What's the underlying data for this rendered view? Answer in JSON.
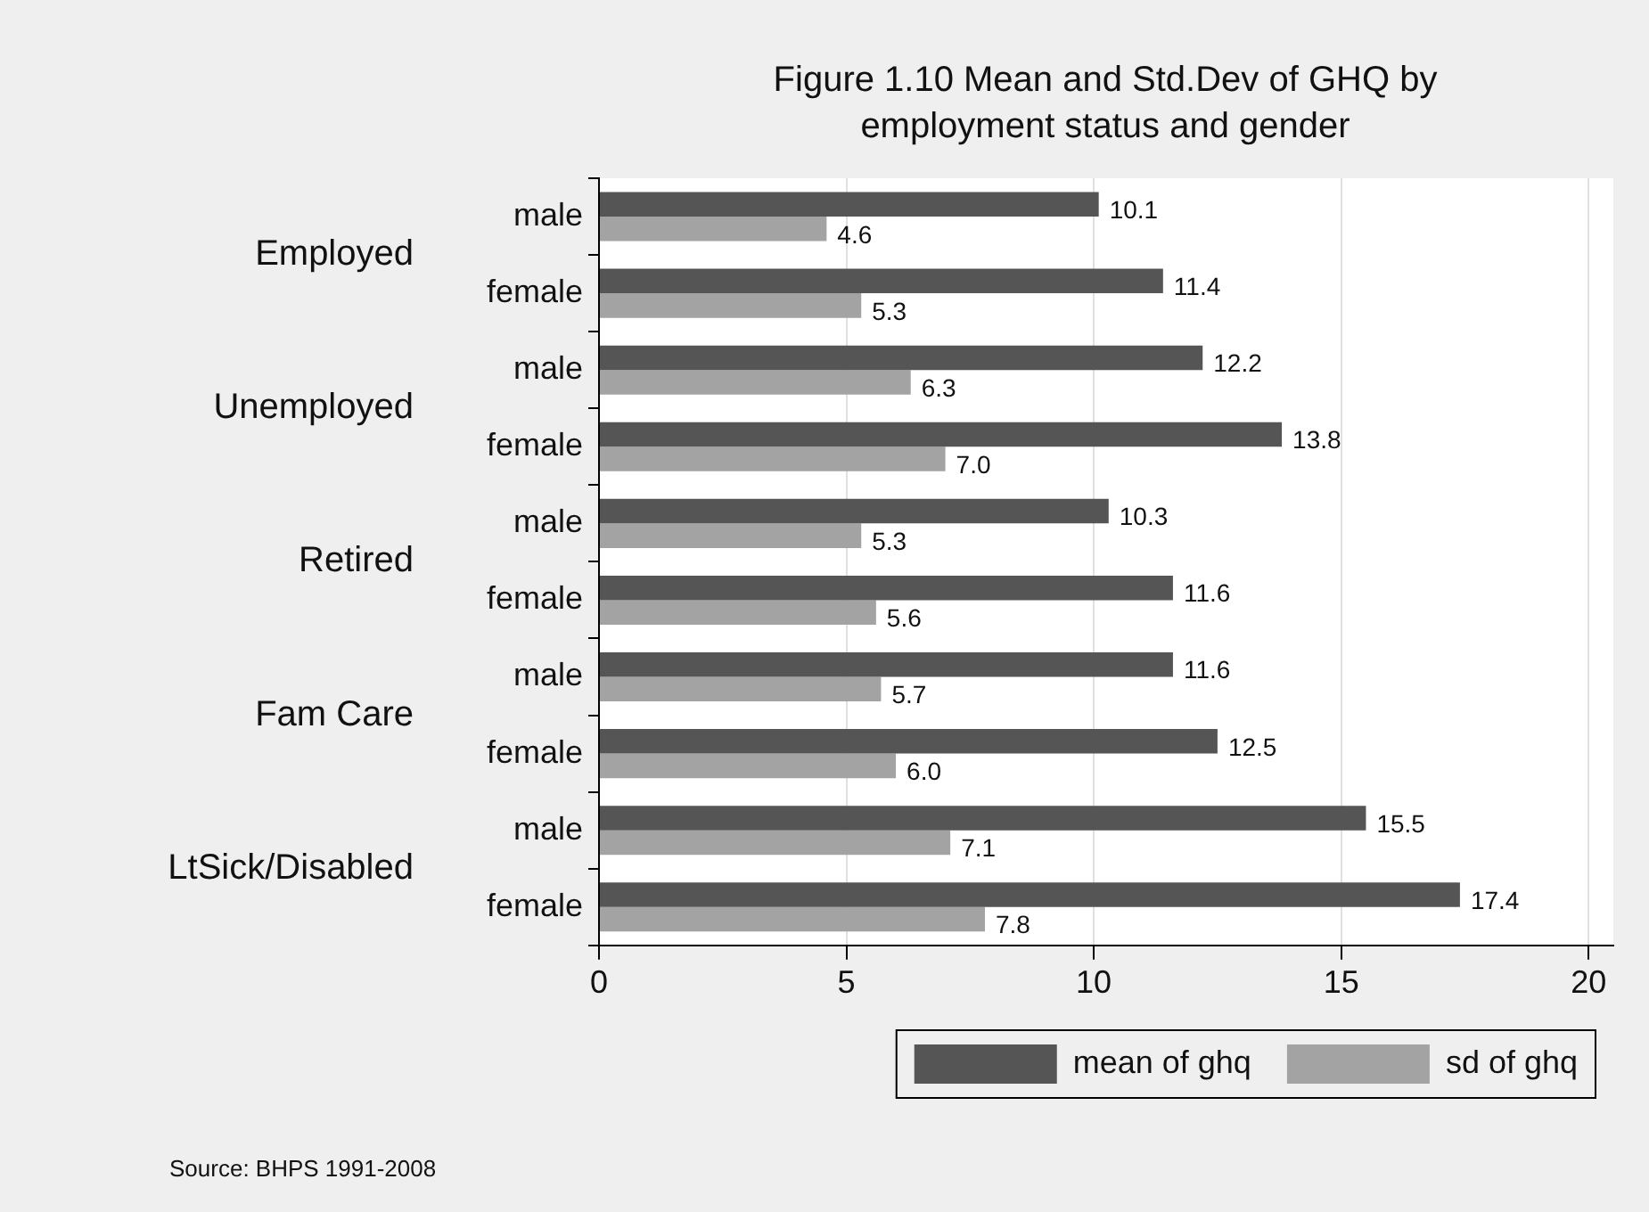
{
  "chart_data": {
    "type": "bar",
    "orientation": "horizontal",
    "title": "Figure 1.10 Mean and Std.Dev of GHQ by employment status and gender",
    "categories": [
      "male",
      "female",
      "male",
      "female",
      "male",
      "female",
      "male",
      "female",
      "male",
      "female"
    ],
    "series": [
      {
        "name": "mean of ghq",
        "color": "#555555",
        "values": [
          10.1,
          11.4,
          12.2,
          13.8,
          10.3,
          11.6,
          11.6,
          12.5,
          15.5,
          17.4
        ],
        "value_labels": [
          "10.1",
          "11.4",
          "12.2",
          "13.8",
          "10.3",
          "11.6",
          "11.6",
          "12.5",
          "15.5",
          "17.4"
        ]
      },
      {
        "name": "sd of ghq",
        "color": "#a3a3a3",
        "values": [
          4.6,
          5.3,
          6.3,
          7.0,
          5.3,
          5.6,
          5.7,
          6.0,
          7.1,
          7.8
        ],
        "value_labels": [
          "4.6",
          "5.3",
          "6.3",
          "7.0",
          "5.3",
          "5.6",
          "5.7",
          "6.0",
          "7.1",
          "7.8"
        ]
      }
    ],
    "xlim": [
      0,
      20.5
    ],
    "xticks": [
      0,
      5,
      10,
      15,
      20
    ],
    "grid": "x",
    "legend": "bottom right",
    "annotations": [
      {
        "text": "Employed"
      },
      {
        "text": "Unemployed"
      },
      {
        "text": "Retired"
      },
      {
        "text": "Fam Care"
      },
      {
        "text": "LtSick/Disabled"
      },
      "Source: BHPS 1991-2008"
    ]
  }
}
